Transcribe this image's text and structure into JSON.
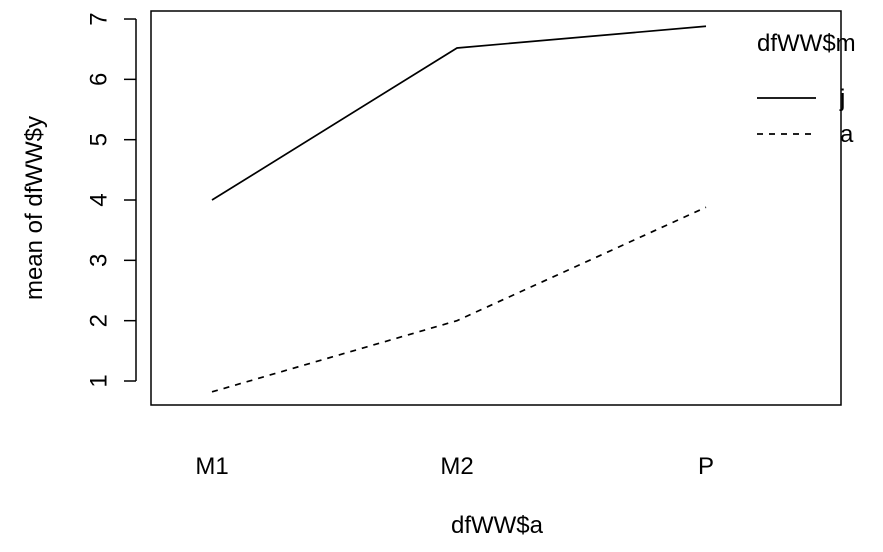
{
  "chart_data": {
    "type": "line",
    "categories": [
      "M1",
      "M2",
      "P"
    ],
    "series": [
      {
        "name": "j",
        "values": [
          4.0,
          6.52,
          6.88
        ],
        "line_style": "solid",
        "color": "#000000"
      },
      {
        "name": "a",
        "values": [
          0.82,
          2.0,
          3.88
        ],
        "line_style": "dashed",
        "color": "#000000"
      }
    ],
    "xlabel": "dfWW$a",
    "ylabel": "mean of  dfWW$y",
    "ylim": [
      0.6,
      7.05
    ],
    "y_ticks": [
      1,
      2,
      3,
      4,
      5,
      6,
      7
    ],
    "legend": {
      "title": "dfWW$m",
      "placement": "top-right"
    },
    "grid": false,
    "box": true
  }
}
